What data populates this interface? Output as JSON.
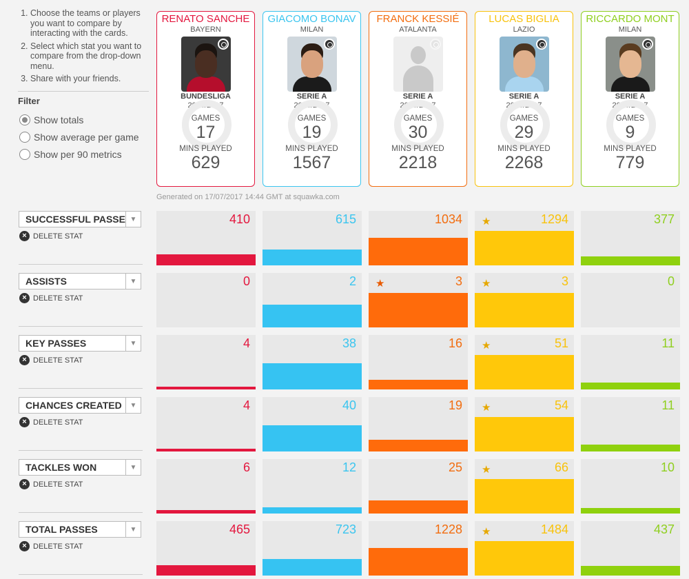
{
  "instructions": [
    "Choose the teams or players you want to compare by interacting with the cards.",
    "Select which stat you want to compare from the drop-down menu.",
    "Share with your friends."
  ],
  "filter": {
    "title": "Filter",
    "options": [
      "Show totals",
      "Show average per game",
      "Show per 90 metrics"
    ],
    "selected": "Show totals"
  },
  "card_labels": {
    "games": "GAMES",
    "mins": "MINS PLAYED"
  },
  "players": [
    {
      "name": "RENATO SANCHE",
      "team": "BAYERN",
      "league": "BUNDESLIGA",
      "season": "2016/2017",
      "games": "17",
      "mins": "629",
      "color": "#e3173e",
      "bar_color": "#e3173e",
      "has_photo": true
    },
    {
      "name": "GIACOMO BONAV",
      "team": "MILAN",
      "league": "SERIE A",
      "season": "2016/2017",
      "games": "19",
      "mins": "1567",
      "color": "#3bc5ef",
      "bar_color": "#36c3f2",
      "has_photo": true
    },
    {
      "name": "FRANCK KESSIÉ",
      "team": "ATALANTA",
      "league": "SERIE A",
      "season": "2016/2017",
      "games": "30",
      "mins": "2218",
      "color": "#f26d0f",
      "bar_color": "#ff6b0b",
      "has_photo": false
    },
    {
      "name": "LUCAS BIGLIA",
      "team": "LAZIO",
      "league": "SERIE A",
      "season": "2016/2017",
      "games": "29",
      "mins": "2268",
      "color": "#f8c20c",
      "bar_color": "#ffc80a",
      "has_photo": true
    },
    {
      "name": "RICCARDO MONT",
      "team": "MILAN",
      "league": "SERIE A",
      "season": "2016/2017",
      "games": "9",
      "mins": "779",
      "color": "#8fcf1f",
      "bar_color": "#8fd10e",
      "has_photo": true
    }
  ],
  "generated": "Generated on 17/07/2017 14:44 GMT at squawka.com",
  "delete_label": "DELETE STAT",
  "stats": [
    {
      "label": "SUCCESSFUL PASSE",
      "values": [
        "410",
        "615",
        "1034",
        "1294",
        "377"
      ],
      "fill": [
        0.2,
        0.29,
        0.51,
        0.63,
        0.17
      ],
      "stars": [
        false,
        false,
        false,
        true,
        false
      ]
    },
    {
      "label": "ASSISTS",
      "values": [
        "0",
        "2",
        "3",
        "3",
        "0"
      ],
      "fill": [
        0.0,
        0.42,
        0.63,
        0.63,
        0.0
      ],
      "stars": [
        false,
        false,
        true,
        true,
        false
      ]
    },
    {
      "label": "KEY PASSES",
      "values": [
        "4",
        "38",
        "16",
        "51",
        "11"
      ],
      "fill": [
        0.05,
        0.48,
        0.18,
        0.63,
        0.13
      ],
      "stars": [
        false,
        false,
        false,
        true,
        false
      ]
    },
    {
      "label": "CHANCES CREATED",
      "values": [
        "4",
        "40",
        "19",
        "54",
        "11"
      ],
      "fill": [
        0.05,
        0.48,
        0.22,
        0.63,
        0.13
      ],
      "stars": [
        false,
        false,
        false,
        true,
        false
      ]
    },
    {
      "label": "TACKLES WON",
      "values": [
        "6",
        "12",
        "25",
        "66",
        "10"
      ],
      "fill": [
        0.06,
        0.12,
        0.24,
        0.63,
        0.1
      ],
      "stars": [
        false,
        false,
        false,
        true,
        false
      ]
    },
    {
      "label": "TOTAL PASSES",
      "values": [
        "465",
        "723",
        "1228",
        "1484",
        "437"
      ],
      "fill": [
        0.19,
        0.3,
        0.51,
        0.63,
        0.18
      ],
      "stars": [
        false,
        false,
        false,
        true,
        false
      ]
    }
  ]
}
